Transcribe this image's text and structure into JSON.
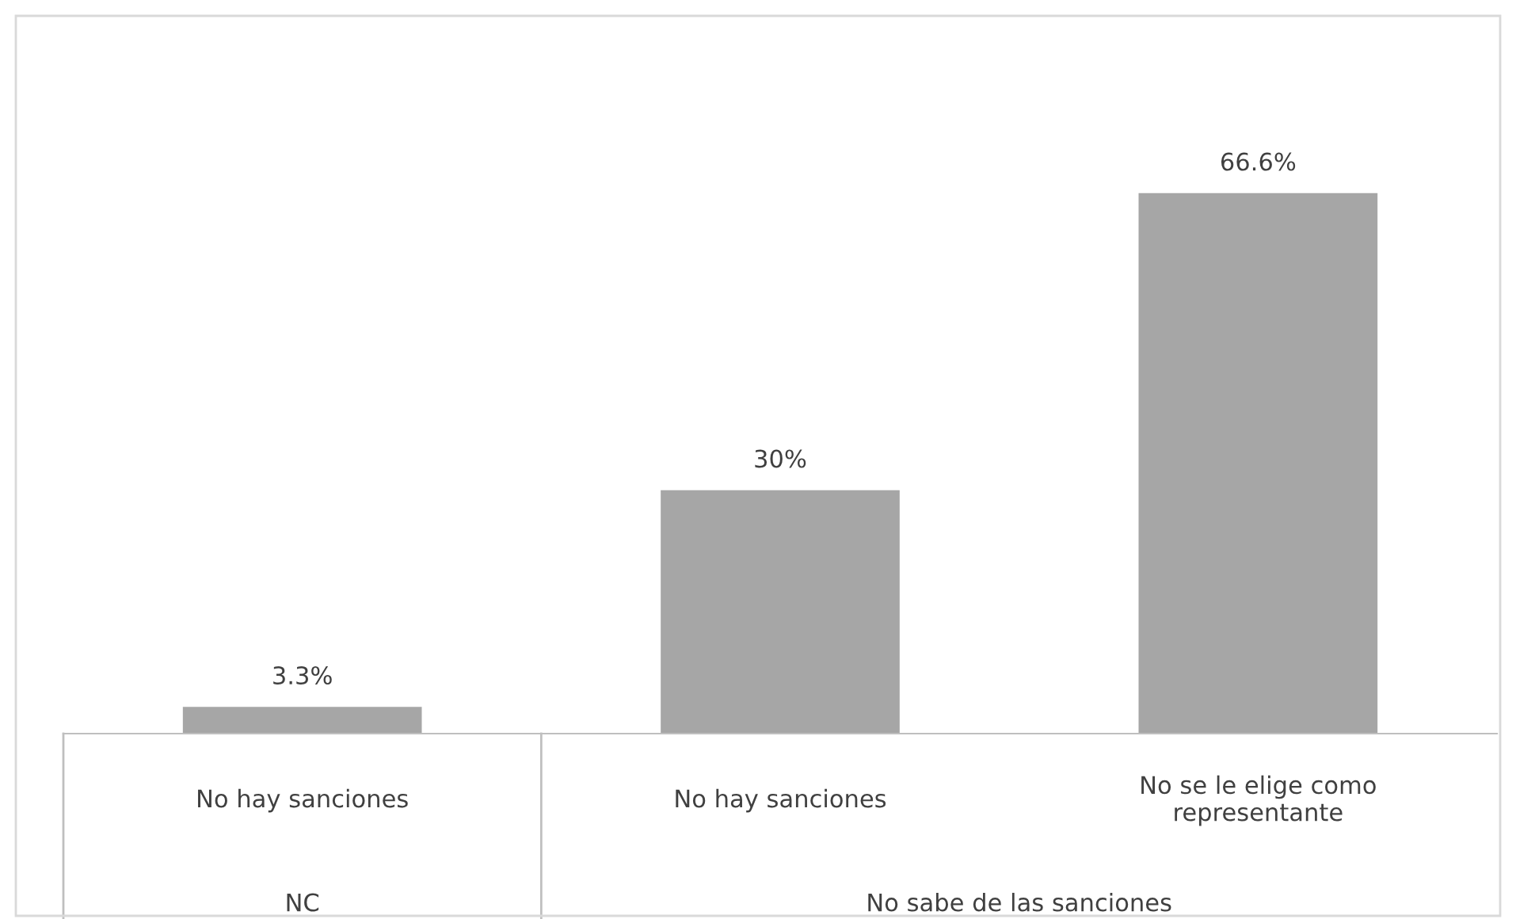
{
  "chart_data": {
    "type": "bar",
    "categories": [
      "No hay sanciones",
      "No hay sanciones",
      "No se le elige como\nrepresentante"
    ],
    "values": [
      3.3,
      30,
      66.6
    ],
    "value_labels": [
      "3.3%",
      "30%",
      "66.6%"
    ],
    "color": "#a6a6a6",
    "annotations": [
      "NC",
      "No sabe de las sanciones"
    ]
  }
}
